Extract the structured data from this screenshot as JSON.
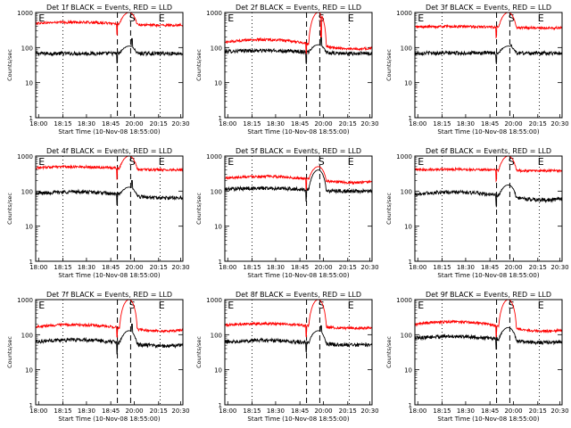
{
  "figure": {
    "ylabel": "Counts/sec",
    "xlabel": "Start Time (10-Nov-08 18:55:00)",
    "xtick_labels": [
      "18:00",
      "18:15",
      "18:30",
      "18:45",
      "20:00",
      "20:15",
      "20:30"
    ],
    "ytick_labels": [
      "1",
      "10",
      "100",
      "1000"
    ],
    "interval_markers": [
      "E",
      "S",
      "E"
    ],
    "colors": {
      "events": "#000000",
      "lld": "#ff0000"
    }
  },
  "chart_data": [
    {
      "type": "line",
      "title": "Det 1f BLACK = Events, RED = LLD",
      "xlabel": "Start Time (10-Nov-08 18:55:00)",
      "ylabel": "Counts/sec",
      "yscale": "log",
      "ylim": [
        1,
        1000
      ],
      "x_ticks": [
        "18:00",
        "18:15",
        "18:30",
        "18:45",
        "20:00",
        "20:15",
        "20:30"
      ],
      "series": [
        {
          "name": "Events",
          "color": "#000000",
          "base_level": 68,
          "hump": 0,
          "eclipse_peak": 110,
          "spike_level": 180
        },
        {
          "name": "LLD",
          "color": "#ff0000",
          "base_level": 480,
          "hump": 0.1,
          "eclipse_peak": 1000,
          "spike_level": 0
        }
      ]
    },
    {
      "type": "line",
      "title": "Det 2f BLACK = Events, RED = LLD",
      "xlabel": "Start Time (10-Nov-08 18:55:00)",
      "ylabel": "Counts/sec",
      "yscale": "log",
      "ylim": [
        1,
        1000
      ],
      "x_ticks": [
        "18:00",
        "18:15",
        "18:30",
        "18:45",
        "20:00",
        "20:15",
        "20:30"
      ],
      "series": [
        {
          "name": "Events",
          "color": "#000000",
          "base_level": 75,
          "hump": 0.1,
          "eclipse_peak": 120,
          "spike_level": 200
        },
        {
          "name": "LLD",
          "color": "#ff0000",
          "base_level": 130,
          "hump": 0.3,
          "eclipse_peak": 1000,
          "spike_level": 200
        }
      ]
    },
    {
      "type": "line",
      "title": "Det 3f BLACK = Events, RED = LLD",
      "xlabel": "Start Time (10-Nov-08 18:55:00)",
      "ylabel": "Counts/sec",
      "yscale": "log",
      "ylim": [
        1,
        1000
      ],
      "x_ticks": [
        "18:00",
        "18:15",
        "18:30",
        "18:45",
        "20:00",
        "20:15",
        "20:30"
      ],
      "series": [
        {
          "name": "Events",
          "color": "#000000",
          "base_level": 70,
          "hump": 0,
          "eclipse_peak": 110,
          "spike_level": 120
        },
        {
          "name": "LLD",
          "color": "#ff0000",
          "base_level": 380,
          "hump": 0.05,
          "eclipse_peak": 1000,
          "spike_level": 0
        }
      ]
    },
    {
      "type": "line",
      "title": "Det 4f BLACK = Events, RED = LLD",
      "xlabel": "Start Time (10-Nov-08 18:55:00)",
      "ylabel": "Counts/sec",
      "yscale": "log",
      "ylim": [
        1,
        1000
      ],
      "x_ticks": [
        "18:00",
        "18:15",
        "18:30",
        "18:45",
        "20:00",
        "20:15",
        "20:30"
      ],
      "series": [
        {
          "name": "Events",
          "color": "#000000",
          "base_level": 80,
          "hump": 0.2,
          "eclipse_peak": 130,
          "spike_level": 200
        },
        {
          "name": "LLD",
          "color": "#ff0000",
          "base_level": 450,
          "hump": 0.1,
          "eclipse_peak": 1000,
          "spike_level": 0
        }
      ]
    },
    {
      "type": "line",
      "title": "Det 5f BLACK = Events, RED = LLD",
      "xlabel": "Start Time (10-Nov-08 18:55:00)",
      "ylabel": "Counts/sec",
      "yscale": "log",
      "ylim": [
        1,
        1000
      ],
      "x_ticks": [
        "18:00",
        "18:15",
        "18:30",
        "18:45",
        "20:00",
        "20:15",
        "20:30"
      ],
      "series": [
        {
          "name": "Events",
          "color": "#000000",
          "base_level": 110,
          "hump": 0.1,
          "eclipse_peak": 400,
          "spike_level": 0
        },
        {
          "name": "LLD",
          "color": "#ff0000",
          "base_level": 220,
          "hump": 0.2,
          "eclipse_peak": 500,
          "spike_level": 0
        }
      ]
    },
    {
      "type": "line",
      "title": "Det 6f BLACK = Events, RED = LLD",
      "xlabel": "Start Time (10-Nov-08 18:55:00)",
      "ylabel": "Counts/sec",
      "yscale": "log",
      "ylim": [
        1,
        1000
      ],
      "x_ticks": [
        "18:00",
        "18:15",
        "18:30",
        "18:45",
        "20:00",
        "20:15",
        "20:30"
      ],
      "series": [
        {
          "name": "Events",
          "color": "#000000",
          "base_level": 75,
          "hump": 0.25,
          "eclipse_peak": 150,
          "spike_level": 0
        },
        {
          "name": "LLD",
          "color": "#ff0000",
          "base_level": 400,
          "hump": 0.05,
          "eclipse_peak": 1000,
          "spike_level": 0
        }
      ]
    },
    {
      "type": "line",
      "title": "Det 7f BLACK = Events, RED = LLD",
      "xlabel": "Start Time (10-Nov-08 18:55:00)",
      "ylabel": "Counts/sec",
      "yscale": "log",
      "ylim": [
        1,
        1000
      ],
      "x_ticks": [
        "18:00",
        "18:15",
        "18:30",
        "18:45",
        "20:00",
        "20:15",
        "20:30"
      ],
      "series": [
        {
          "name": "Events",
          "color": "#000000",
          "base_level": 60,
          "hump": 0.2,
          "eclipse_peak": 130,
          "spike_level": 200
        },
        {
          "name": "LLD",
          "color": "#ff0000",
          "base_level": 160,
          "hump": 0.2,
          "eclipse_peak": 1000,
          "spike_level": 0
        }
      ]
    },
    {
      "type": "line",
      "title": "Det 8f BLACK = Events, RED = LLD",
      "xlabel": "Start Time (10-Nov-08 18:55:00)",
      "ylabel": "Counts/sec",
      "yscale": "log",
      "ylim": [
        1,
        1000
      ],
      "x_ticks": [
        "18:00",
        "18:15",
        "18:30",
        "18:45",
        "20:00",
        "20:15",
        "20:30"
      ],
      "series": [
        {
          "name": "Events",
          "color": "#000000",
          "base_level": 60,
          "hump": 0.15,
          "eclipse_peak": 130,
          "spike_level": 180
        },
        {
          "name": "LLD",
          "color": "#ff0000",
          "base_level": 180,
          "hump": 0.15,
          "eclipse_peak": 1000,
          "spike_level": 0
        }
      ]
    },
    {
      "type": "line",
      "title": "Det 9f BLACK = Events, RED = LLD",
      "xlabel": "Start Time (10-Nov-08 18:55:00)",
      "ylabel": "Counts/sec",
      "yscale": "log",
      "ylim": [
        1,
        1000
      ],
      "x_ticks": [
        "18:00",
        "18:15",
        "18:30",
        "18:45",
        "20:00",
        "20:15",
        "20:30"
      ],
      "series": [
        {
          "name": "Events",
          "color": "#000000",
          "base_level": 75,
          "hump": 0.2,
          "eclipse_peak": 160,
          "spike_level": 0
        },
        {
          "name": "LLD",
          "color": "#ff0000",
          "base_level": 180,
          "hump": 0.3,
          "eclipse_peak": 1000,
          "spike_level": 0
        }
      ]
    }
  ]
}
